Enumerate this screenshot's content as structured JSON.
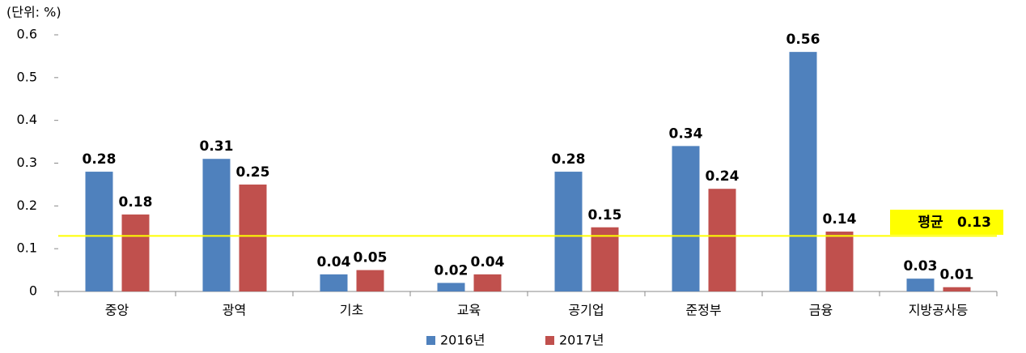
{
  "chart_data": {
    "type": "bar",
    "unit_label": "(단위: %)",
    "categories": [
      "중앙",
      "광역",
      "기초",
      "교육",
      "공기업",
      "준정부",
      "금융",
      "지방공사등"
    ],
    "series": [
      {
        "name": "2016년",
        "color": "#4f81bd",
        "values": [
          0.28,
          0.31,
          0.04,
          0.02,
          0.28,
          0.34,
          0.56,
          0.03
        ]
      },
      {
        "name": "2017년",
        "color": "#c0504d",
        "values": [
          0.18,
          0.25,
          0.05,
          0.04,
          0.15,
          0.24,
          0.14,
          0.01
        ]
      }
    ],
    "ylim": [
      0,
      0.6
    ],
    "yticks": [
      0,
      0.1,
      0.2,
      0.3,
      0.4,
      0.5,
      0.6
    ],
    "reference_line": {
      "label": "평균",
      "value": 0.13,
      "color": "#ffff00"
    },
    "legend": "bottom"
  }
}
